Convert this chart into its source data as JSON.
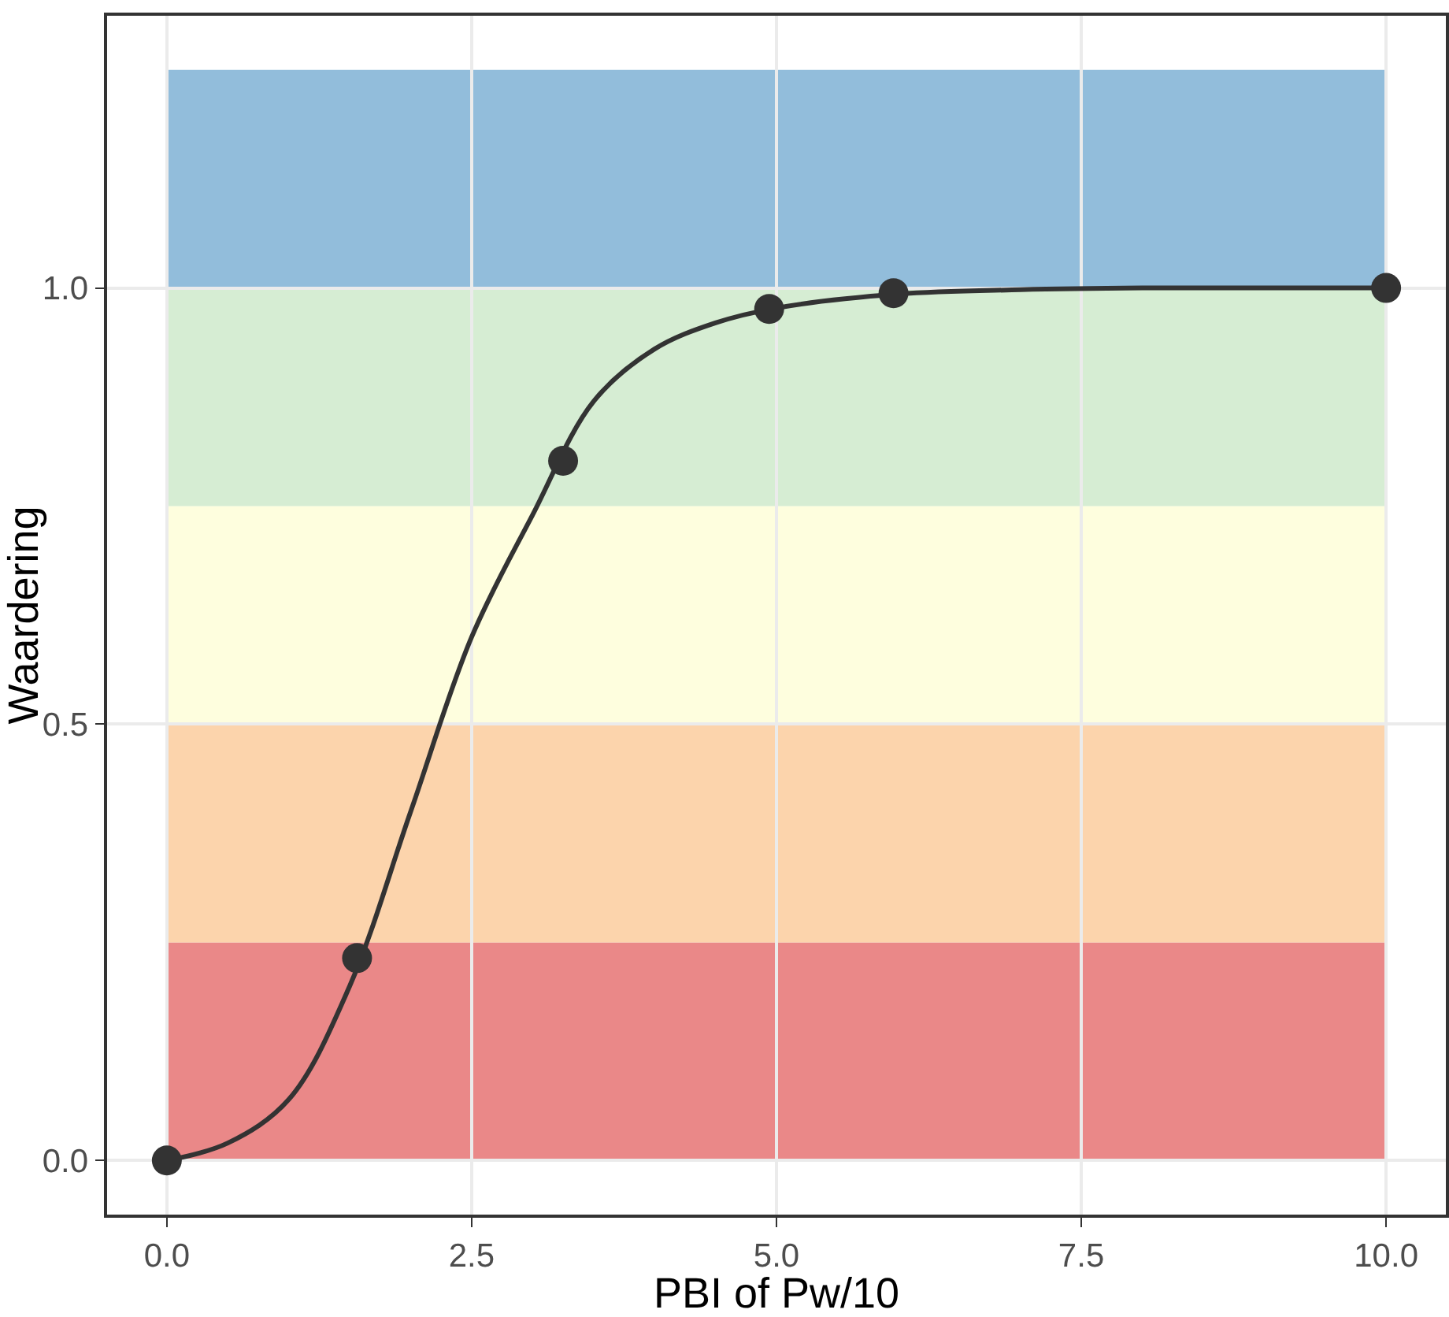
{
  "chart_data": {
    "type": "scatter",
    "xlabel": "PBI of Pw/10",
    "ylabel": "Waardering",
    "xlim": [
      -0.49,
      10.49
    ],
    "ylim": [
      -0.062,
      1.312
    ],
    "xticks": [
      {
        "value": 0,
        "label": "0.0"
      },
      {
        "value": 2.5,
        "label": "2.5"
      },
      {
        "value": 5,
        "label": "5.0"
      },
      {
        "value": 7.5,
        "label": "7.5"
      },
      {
        "value": 10,
        "label": "10.0"
      }
    ],
    "yticks": [
      {
        "value": 0,
        "label": "0.0"
      },
      {
        "value": 0.5,
        "label": "0.5"
      },
      {
        "value": 1,
        "label": "1.0"
      }
    ],
    "grid": true,
    "bands": [
      {
        "axis": "y",
        "from": 0,
        "to": 0.25,
        "color": "#e67373"
      },
      {
        "axis": "y",
        "from": 0.25,
        "to": 0.5,
        "color": "#fccc9e"
      },
      {
        "axis": "y",
        "from": 0.5,
        "to": 0.75,
        "color": "#fefed8"
      },
      {
        "axis": "y",
        "from": 0.75,
        "to": 1,
        "color": "#cfeacb"
      },
      {
        "axis": "y",
        "from": 1,
        "to": 1.25,
        "color": "#7fb2d5"
      }
    ],
    "series": [
      {
        "type": "line",
        "marker": "none",
        "color": "#333333",
        "x": [
          0,
          0.5,
          1,
          1.5,
          2,
          2.5,
          3,
          3.5,
          4,
          4.5,
          5,
          6,
          7,
          8,
          10
        ],
        "values": [
          0,
          0.02,
          0.07,
          0.2,
          0.4,
          0.6,
          0.74,
          0.87,
          0.93,
          0.96,
          0.977,
          0.993,
          0.998,
          1,
          1
        ]
      },
      {
        "marker": "circle",
        "color": "#333333",
        "x": [
          0,
          1.56,
          3.25,
          4.94,
          5.96,
          10
        ],
        "values": [
          0,
          0.232,
          0.802,
          0.976,
          0.994,
          1
        ]
      }
    ]
  }
}
